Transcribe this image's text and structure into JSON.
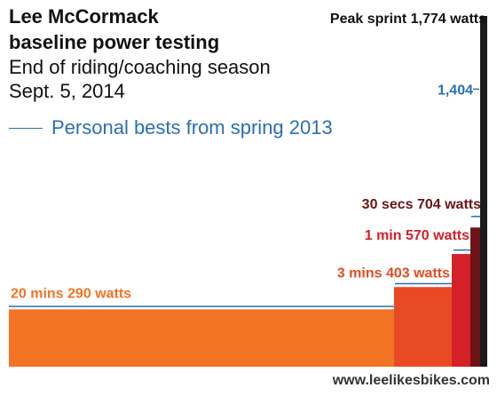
{
  "titles": {
    "line1": "Lee McCormack",
    "line2": "baseline power testing",
    "line3": "End of riding/coaching season",
    "line4": "Sept. 5, 2014"
  },
  "legend": {
    "label": "Personal bests from spring 2013",
    "color": "#2a6fb5"
  },
  "watermark": "www.leelikesbikes.com",
  "chart_data": {
    "type": "bar",
    "title": "Lee McCormack baseline power testing",
    "ylabel": "",
    "xlabel": "",
    "ylim": [
      0,
      1774
    ],
    "grid": false,
    "legend_position": "top-left",
    "categories": [
      "20 mins",
      "3 mins",
      "1 min",
      "30 secs",
      "Peak sprint"
    ],
    "series": [
      {
        "name": "Sept. 5, 2014",
        "values": [
          290,
          403,
          570,
          704,
          1774
        ],
        "labels": [
          "20 mins 290 watts",
          "3 mins 403 watts",
          "1 min 570 watts",
          "30 secs 704 watts",
          "Peak sprint 1,774 watts"
        ],
        "colors": [
          "#f27323",
          "#e84a25",
          "#d42027",
          "#6e1318",
          "#1b1b1b"
        ],
        "label_colors": [
          "#f27323",
          "#e84a25",
          "#d42027",
          "#6e1318",
          "#111111"
        ]
      },
      {
        "name": "Personal bests from spring 2013",
        "values": [
          305,
          420,
          590,
          760,
          1404
        ],
        "annotation": "1,404"
      }
    ]
  }
}
